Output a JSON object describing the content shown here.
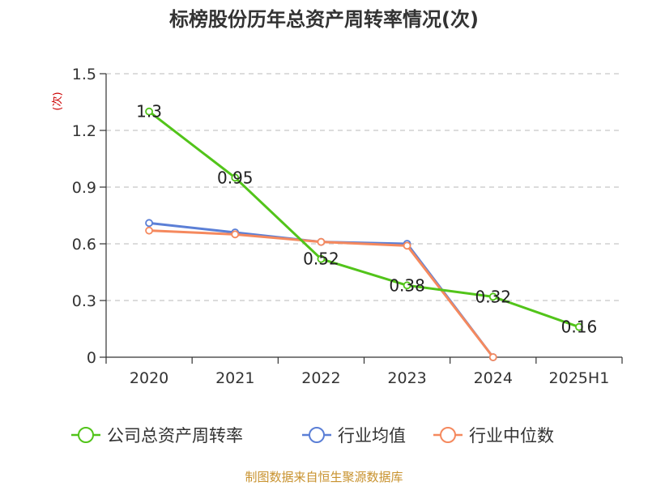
{
  "chart_data": {
    "type": "line",
    "title": "标榜股份历年总资产周转率情况(次)",
    "ylabel": "(次)",
    "ylim": [
      0,
      1.5
    ],
    "y_ticks": [
      "0",
      "0.3",
      "0.6",
      "0.9",
      "1.2",
      "1.5"
    ],
    "categories": [
      "2020",
      "2021",
      "2022",
      "2023",
      "2024",
      "2025H1"
    ],
    "grid": true,
    "legend_position": "bottom",
    "series": [
      {
        "name": "公司总资产周转率",
        "color": "#52c41a",
        "values": [
          1.3,
          0.95,
          0.52,
          0.38,
          0.32,
          0.16
        ],
        "labels": [
          "1.3",
          "0.95",
          "0.52",
          "0.38",
          "0.32",
          "0.16"
        ]
      },
      {
        "name": "行业均值",
        "color": "#5b7fd6",
        "values": [
          0.71,
          0.66,
          0.61,
          0.6,
          0.0,
          null
        ],
        "labels": null
      },
      {
        "name": "行业中位数",
        "color": "#f5895e",
        "values": [
          0.67,
          0.65,
          0.61,
          0.59,
          0.0,
          null
        ],
        "labels": null
      }
    ],
    "source": "制图数据来自恒生聚源数据库"
  }
}
